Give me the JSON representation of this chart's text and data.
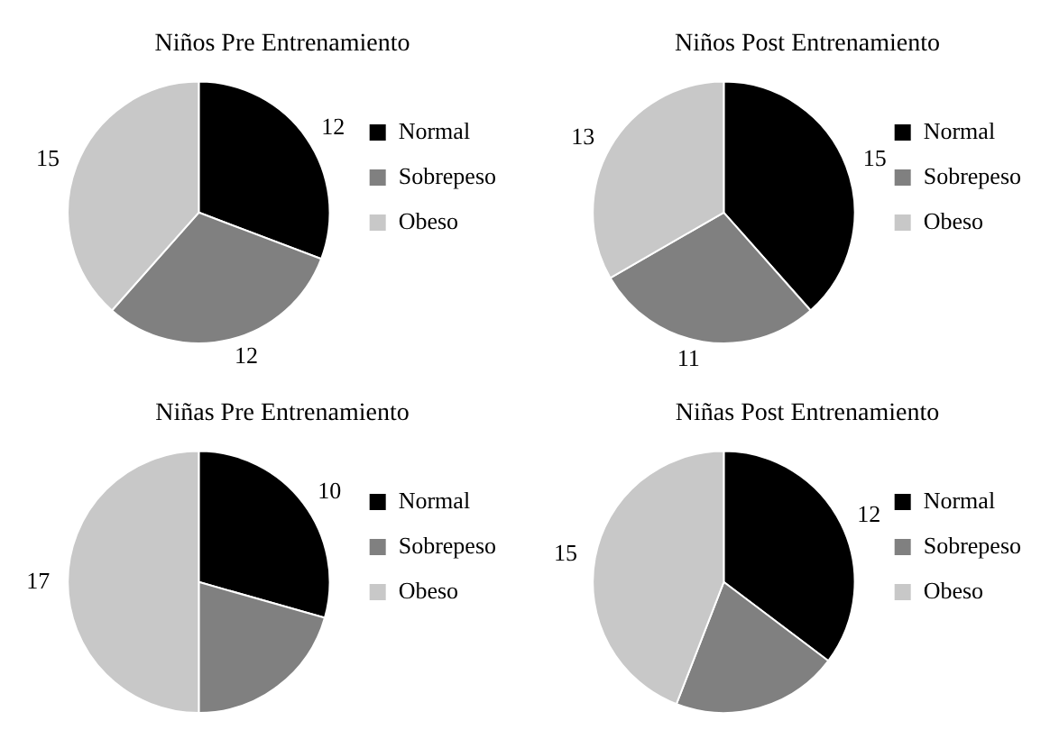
{
  "chart_data": [
    {
      "type": "pie",
      "title": "Niños Pre Entrenamiento",
      "categories": [
        "Normal",
        "Sobrepeso",
        "Obeso"
      ],
      "values": [
        12,
        12,
        15
      ],
      "colors": [
        "#000000",
        "#808080",
        "#c8c8c8"
      ],
      "data_labels": true,
      "legend": "right"
    },
    {
      "type": "pie",
      "title": "Niños Post Entrenamiento",
      "categories": [
        "Normal",
        "Sobrepeso",
        "Obeso"
      ],
      "values": [
        15,
        11,
        13
      ],
      "colors": [
        "#000000",
        "#808080",
        "#c8c8c8"
      ],
      "data_labels": true,
      "legend": "right"
    },
    {
      "type": "pie",
      "title": "Niñas Pre Entrenamiento",
      "categories": [
        "Normal",
        "Sobrepeso",
        "Obeso"
      ],
      "values": [
        10,
        7,
        17
      ],
      "colors": [
        "#000000",
        "#808080",
        "#c8c8c8"
      ],
      "value_labels": [
        "10",
        null,
        "17"
      ],
      "legend": "right"
    },
    {
      "type": "pie",
      "title": "Niñas Post Entrenamiento",
      "categories": [
        "Normal",
        "Sobrepeso",
        "Obeso"
      ],
      "values": [
        12,
        7,
        15
      ],
      "colors": [
        "#000000",
        "#808080",
        "#c8c8c8"
      ],
      "value_labels": [
        "12",
        null,
        "15"
      ],
      "legend": "right"
    }
  ]
}
